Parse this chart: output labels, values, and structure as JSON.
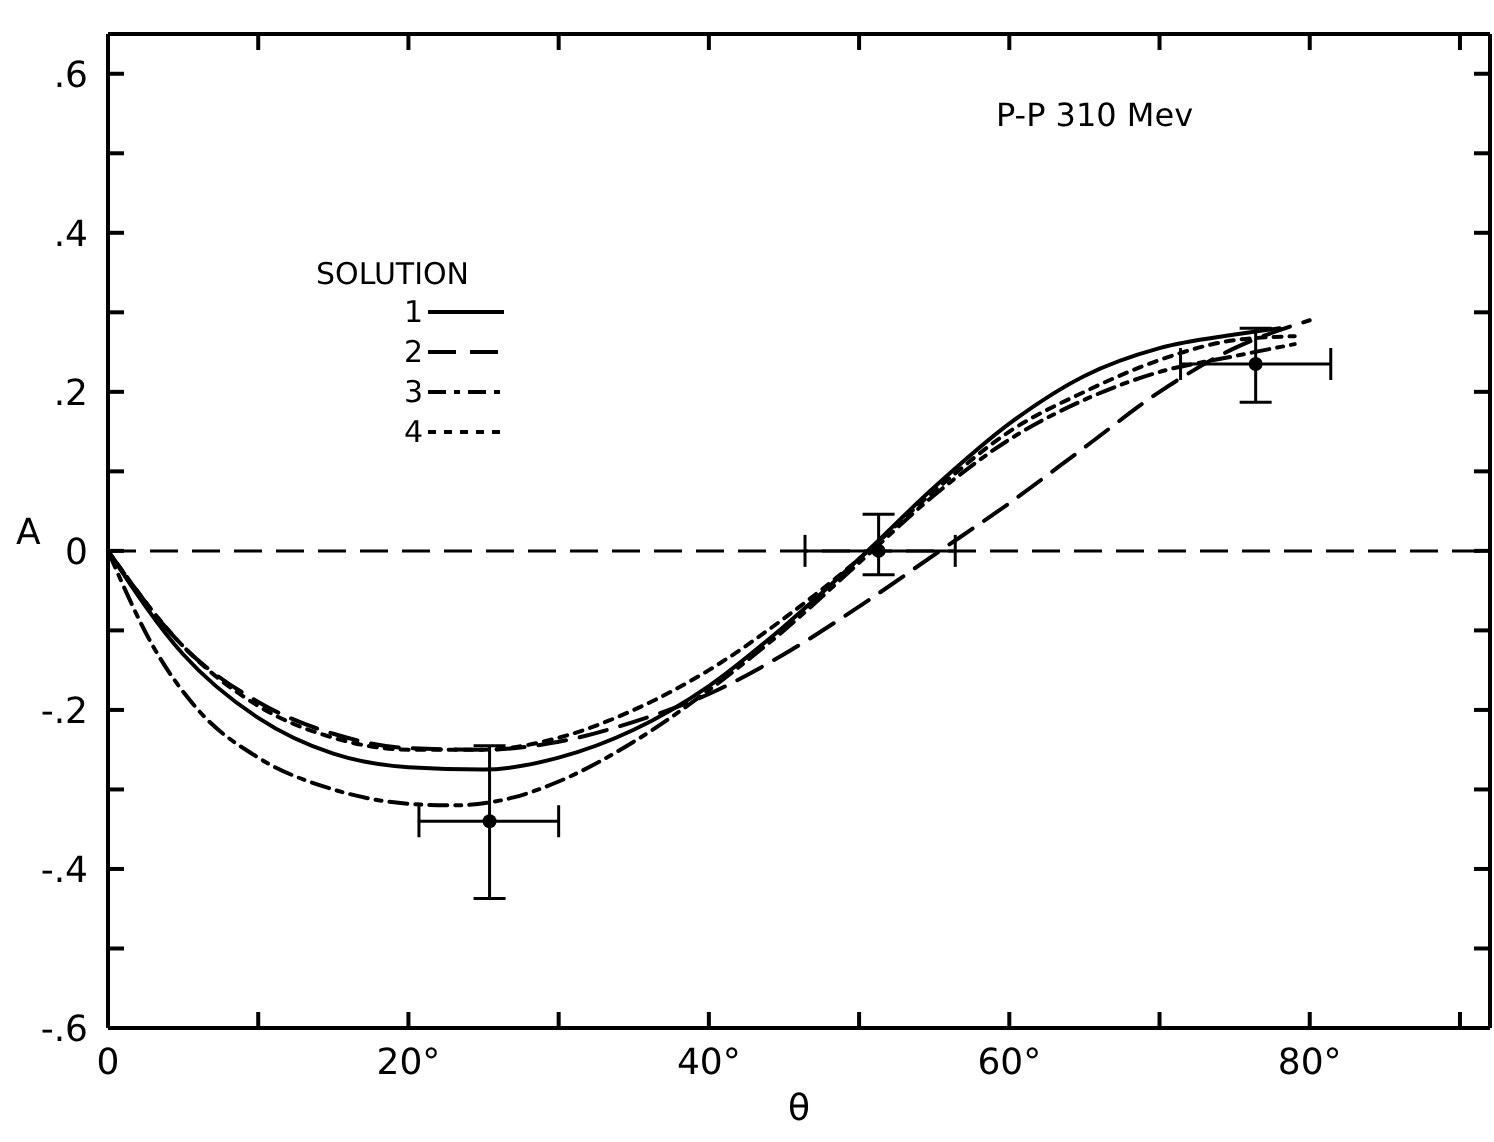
{
  "chart_data": {
    "type": "line",
    "title": "P-P 310 Mev",
    "xlabel": "θ",
    "ylabel": "A",
    "legend_title": "SOLUTION",
    "legend": "top left",
    "grid": false,
    "marker": "none",
    "xlim": [
      0,
      92
    ],
    "ylim": [
      -0.6,
      0.65
    ],
    "xticks": [
      0,
      {
        "value": 10,
        "label": null
      },
      {
        "value": 20,
        "label": "20°"
      },
      {
        "value": 30,
        "label": null
      },
      {
        "value": 40,
        "label": "40°"
      },
      {
        "value": 50,
        "label": null
      },
      {
        "value": 60,
        "label": "60°"
      },
      {
        "value": 70,
        "label": null
      },
      {
        "value": 80,
        "label": "80°"
      },
      {
        "value": 90,
        "label": null
      }
    ],
    "yticks": [
      {
        "value": -0.6,
        "label": "-.6"
      },
      {
        "value": -0.5,
        "label": null
      },
      {
        "value": -0.4,
        "label": "-.4"
      },
      {
        "value": -0.3,
        "label": null
      },
      {
        "value": -0.2,
        "label": "-.2"
      },
      {
        "value": -0.1,
        "label": null
      },
      0,
      {
        "value": 0.1,
        "label": null
      },
      {
        "value": 0.2,
        "label": ".2"
      },
      {
        "value": 0.3,
        "label": null
      },
      {
        "value": 0.4,
        "label": ".4"
      },
      {
        "value": 0.5,
        "label": null
      },
      {
        "value": 0.6,
        "label": ".6"
      }
    ],
    "ref_lines": [
      {
        "axis": "y",
        "value": 0,
        "label": null,
        "color": "#000000",
        "line_style": "dashed"
      }
    ],
    "series": [
      {
        "name": "1",
        "color": "#000000",
        "line_style": "solid",
        "x": [
          0,
          5,
          10,
          15,
          20,
          25,
          30,
          35,
          40,
          45,
          50,
          55,
          60,
          65,
          70,
          75,
          78
        ],
        "values": [
          0,
          -0.13,
          -0.21,
          -0.255,
          -0.272,
          -0.275,
          -0.26,
          -0.225,
          -0.17,
          -0.095,
          -0.01,
          0.08,
          0.16,
          0.22,
          0.255,
          0.272,
          0.28
        ]
      },
      {
        "name": "2",
        "color": "#000000",
        "line_style": "dashed",
        "x": [
          0,
          5,
          10,
          15,
          20,
          25,
          30,
          35,
          40,
          45,
          50,
          55,
          60,
          65,
          70,
          75,
          80
        ],
        "values": [
          0,
          -0.12,
          -0.19,
          -0.23,
          -0.248,
          -0.25,
          -0.24,
          -0.215,
          -0.18,
          -0.13,
          -0.07,
          -0.005,
          0.06,
          0.13,
          0.2,
          0.255,
          0.29
        ]
      },
      {
        "name": "3",
        "color": "#000000",
        "line_style": "dashdot",
        "x": [
          0,
          3,
          6,
          10,
          15,
          20,
          23,
          27,
          30,
          35,
          40,
          45,
          50,
          55,
          60,
          65,
          70,
          75,
          79
        ],
        "values": [
          0,
          -0.12,
          -0.2,
          -0.26,
          -0.3,
          -0.318,
          -0.32,
          -0.31,
          -0.29,
          -0.24,
          -0.175,
          -0.1,
          -0.015,
          0.07,
          0.14,
          0.19,
          0.225,
          0.245,
          0.26
        ]
      },
      {
        "name": "4",
        "color": "#000000",
        "line_style": "dotted",
        "x": [
          0,
          5,
          10,
          15,
          20,
          25,
          30,
          35,
          40,
          45,
          50,
          55,
          60,
          65,
          70,
          75,
          79
        ],
        "values": [
          0,
          -0.12,
          -0.195,
          -0.235,
          -0.25,
          -0.25,
          -0.235,
          -0.2,
          -0.15,
          -0.085,
          -0.01,
          0.075,
          0.15,
          0.2,
          0.24,
          0.265,
          0.27
        ]
      },
      {
        "type": "scatter",
        "color": "#000000",
        "marker": "circle",
        "x": [
          25.4,
          51.3,
          76.4
        ],
        "values": [
          -0.34,
          0,
          0.235
        ],
        "errors": [
          [
            -0.437,
            -0.245
          ],
          [
            -0.03,
            0.046
          ],
          [
            0.187,
            0.28
          ]
        ],
        "xerrors": [
          [
            20.7,
            30
          ],
          [
            46.4,
            56.4
          ],
          [
            71.4,
            81.4
          ]
        ]
      }
    ]
  }
}
